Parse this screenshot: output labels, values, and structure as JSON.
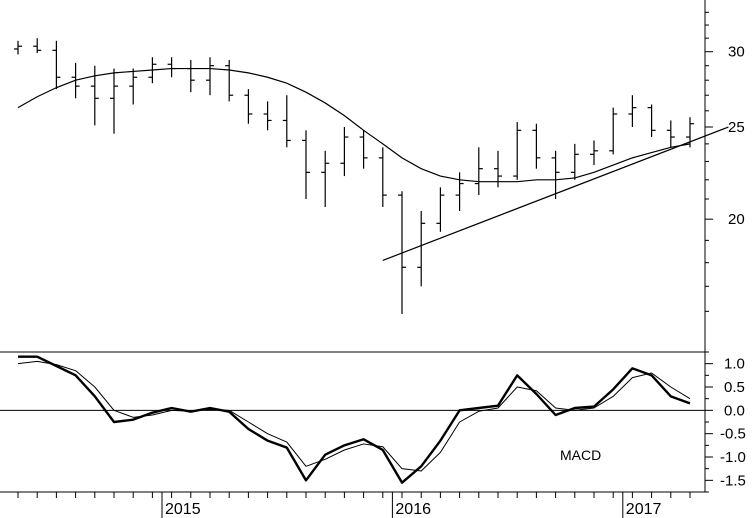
{
  "chart_data": [
    {
      "type": "ohlc",
      "panel": "price",
      "ylim": [
        14.5,
        34
      ],
      "y_scale": "log",
      "y_ticks": [
        {
          "value": 30,
          "label": "30"
        },
        {
          "value": 25,
          "label": "25"
        },
        {
          "value": 20,
          "label": "20"
        }
      ],
      "x": [
        "2014-05",
        "2014-06",
        "2014-07",
        "2014-08",
        "2014-09",
        "2014-10",
        "2014-11",
        "2014-12",
        "2015-01",
        "2015-02",
        "2015-03",
        "2015-04",
        "2015-05",
        "2015-06",
        "2015-07",
        "2015-08",
        "2015-09",
        "2015-10",
        "2015-11",
        "2015-12",
        "2016-01",
        "2016-02",
        "2016-03",
        "2016-04",
        "2016-05",
        "2016-06",
        "2016-07",
        "2016-08",
        "2016-09",
        "2016-10",
        "2016-11",
        "2016-12",
        "2017-01",
        "2017-02",
        "2017-03",
        "2017-04"
      ],
      "series": [
        {
          "values": [
            {
              "o": 30.2,
              "h": 30.8,
              "l": 29.8,
              "c": 30.4
            },
            {
              "o": 30.4,
              "h": 31.0,
              "l": 29.9,
              "c": 30.1
            },
            {
              "o": 30.1,
              "h": 30.8,
              "l": 27.4,
              "c": 28.2
            },
            {
              "o": 28.2,
              "h": 29.2,
              "l": 26.8,
              "c": 27.6
            },
            {
              "o": 27.6,
              "h": 29.0,
              "l": 25.1,
              "c": 26.8
            },
            {
              "o": 26.8,
              "h": 28.8,
              "l": 24.6,
              "c": 27.6
            },
            {
              "o": 27.6,
              "h": 28.8,
              "l": 26.4,
              "c": 28.2
            },
            {
              "o": 28.2,
              "h": 29.6,
              "l": 27.8,
              "c": 29.1
            },
            {
              "o": 29.1,
              "h": 29.6,
              "l": 28.2,
              "c": 28.8
            },
            {
              "o": 28.8,
              "h": 29.4,
              "l": 27.2,
              "c": 28.0
            },
            {
              "o": 28.0,
              "h": 29.6,
              "l": 27.0,
              "c": 29.0
            },
            {
              "o": 29.0,
              "h": 29.4,
              "l": 26.6,
              "c": 27.0
            },
            {
              "o": 27.0,
              "h": 27.4,
              "l": 25.2,
              "c": 25.8
            },
            {
              "o": 25.8,
              "h": 26.6,
              "l": 24.8,
              "c": 25.4
            },
            {
              "o": 25.4,
              "h": 27.0,
              "l": 23.8,
              "c": 24.2
            },
            {
              "o": 24.2,
              "h": 24.8,
              "l": 21.0,
              "c": 22.4
            },
            {
              "o": 22.4,
              "h": 23.6,
              "l": 20.6,
              "c": 22.9
            },
            {
              "o": 22.9,
              "h": 25.0,
              "l": 22.2,
              "c": 24.4
            },
            {
              "o": 24.4,
              "h": 24.8,
              "l": 22.6,
              "c": 23.2
            },
            {
              "o": 23.2,
              "h": 23.8,
              "l": 20.6,
              "c": 21.2
            },
            {
              "o": 21.2,
              "h": 21.4,
              "l": 15.9,
              "c": 17.8
            },
            {
              "o": 17.8,
              "h": 20.4,
              "l": 17.0,
              "c": 19.8
            },
            {
              "o": 19.8,
              "h": 21.6,
              "l": 19.4,
              "c": 21.2
            },
            {
              "o": 21.2,
              "h": 22.4,
              "l": 20.4,
              "c": 21.8
            },
            {
              "o": 21.8,
              "h": 23.8,
              "l": 21.2,
              "c": 22.6
            },
            {
              "o": 22.6,
              "h": 23.6,
              "l": 21.6,
              "c": 22.2
            },
            {
              "o": 22.2,
              "h": 25.3,
              "l": 22.0,
              "c": 24.8
            },
            {
              "o": 24.8,
              "h": 25.2,
              "l": 22.6,
              "c": 23.2
            },
            {
              "o": 23.2,
              "h": 23.6,
              "l": 21.0,
              "c": 22.4
            },
            {
              "o": 22.4,
              "h": 24.0,
              "l": 22.0,
              "c": 23.4
            },
            {
              "o": 23.4,
              "h": 24.2,
              "l": 22.8,
              "c": 23.6
            },
            {
              "o": 23.6,
              "h": 26.2,
              "l": 23.4,
              "c": 25.8
            },
            {
              "o": 25.8,
              "h": 27.0,
              "l": 25.0,
              "c": 26.2
            },
            {
              "o": 26.2,
              "h": 26.4,
              "l": 24.4,
              "c": 24.8
            },
            {
              "o": 24.8,
              "h": 25.4,
              "l": 23.8,
              "c": 24.4
            },
            {
              "o": 24.4,
              "h": 25.6,
              "l": 23.8,
              "c": 25.2
            }
          ]
        },
        {
          "type": "line",
          "values": [
            26.2,
            26.9,
            27.5,
            28.0,
            28.3,
            28.5,
            28.6,
            28.7,
            28.8,
            28.8,
            28.8,
            28.7,
            28.5,
            28.2,
            27.8,
            27.2,
            26.5,
            25.7,
            24.8,
            24.0,
            23.2,
            22.6,
            22.2,
            22.0,
            21.9,
            21.9,
            21.9,
            22.0,
            22.0,
            22.1,
            22.4,
            22.8,
            23.2,
            23.5,
            23.8,
            24.0
          ]
        },
        {
          "type": "trendline",
          "points": [
            {
              "x": "2015-12",
              "y": 18.1
            },
            {
              "x": "2017-06",
              "y": 25.0
            }
          ]
        }
      ]
    },
    {
      "type": "line",
      "panel": "macd",
      "title": "MACD",
      "ylim": [
        -1.75,
        1.25
      ],
      "y_ticks": [
        {
          "value": 1.0,
          "label": "1.0"
        },
        {
          "value": 0.5,
          "label": "0.5"
        },
        {
          "value": 0.0,
          "label": "0.0"
        },
        {
          "value": -0.5,
          "label": "-0.5"
        },
        {
          "value": -1.0,
          "label": "-1.0"
        },
        {
          "value": -1.5,
          "label": "-1.5"
        }
      ],
      "x": [
        "2014-05",
        "2014-06",
        "2014-07",
        "2014-08",
        "2014-09",
        "2014-10",
        "2014-11",
        "2014-12",
        "2015-01",
        "2015-02",
        "2015-03",
        "2015-04",
        "2015-05",
        "2015-06",
        "2015-07",
        "2015-08",
        "2015-09",
        "2015-10",
        "2015-11",
        "2015-12",
        "2016-01",
        "2016-02",
        "2016-03",
        "2016-04",
        "2016-05",
        "2016-06",
        "2016-07",
        "2016-08",
        "2016-09",
        "2016-10",
        "2016-11",
        "2016-12",
        "2017-01",
        "2017-02",
        "2017-03",
        "2017-04"
      ],
      "series": [
        {
          "values": [
            1.15,
            1.15,
            0.95,
            0.75,
            0.3,
            -0.25,
            -0.2,
            -0.05,
            0.05,
            -0.03,
            0.05,
            -0.03,
            -0.4,
            -0.65,
            -0.8,
            -1.5,
            -0.95,
            -0.75,
            -0.62,
            -0.85,
            -1.55,
            -1.2,
            -0.65,
            0.0,
            0.05,
            0.1,
            0.75,
            0.35,
            -0.1,
            0.05,
            0.08,
            0.45,
            0.9,
            0.75,
            0.3,
            0.15
          ]
        },
        {
          "values": [
            1.0,
            1.05,
            0.98,
            0.85,
            0.5,
            0.0,
            -0.15,
            -0.1,
            0.0,
            -0.02,
            0.02,
            0.0,
            -0.25,
            -0.5,
            -0.68,
            -1.2,
            -1.05,
            -0.85,
            -0.72,
            -0.78,
            -1.25,
            -1.3,
            -0.9,
            -0.25,
            -0.02,
            0.05,
            0.5,
            0.42,
            0.05,
            0.0,
            0.05,
            0.3,
            0.7,
            0.8,
            0.5,
            0.25
          ]
        }
      ]
    }
  ],
  "x_axis": {
    "year_labels": [
      {
        "x": "2015-01",
        "label": "2015"
      },
      {
        "x": "2016-01",
        "label": "2016"
      },
      {
        "x": "2017-01",
        "label": "2017"
      }
    ]
  },
  "colors": {
    "line": "#000000",
    "background": "#ffffff"
  }
}
